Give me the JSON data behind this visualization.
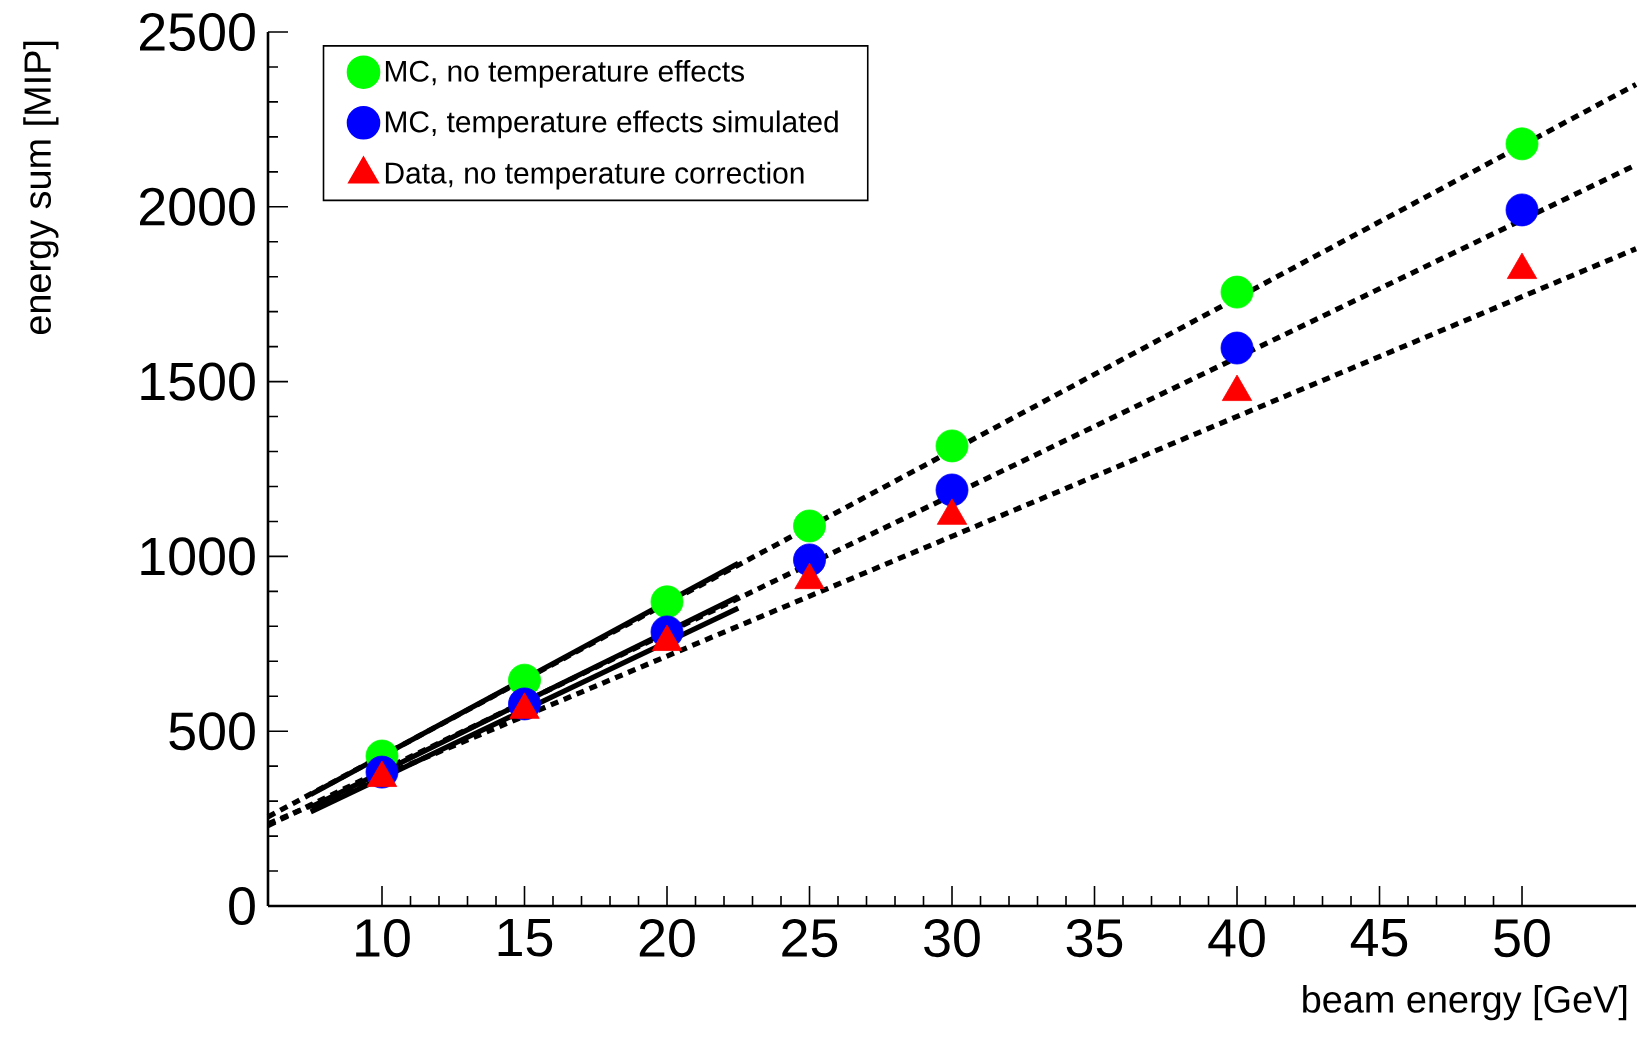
{
  "chart_data": {
    "type": "scatter",
    "xlabel": "beam energy [GeV]",
    "ylabel": "energy sum [MIP]",
    "xlim": [
      6,
      54
    ],
    "ylim": [
      0,
      2500
    ],
    "xticks": [
      10,
      15,
      20,
      25,
      30,
      35,
      40,
      45,
      50
    ],
    "yticks": [
      0,
      500,
      1000,
      1500,
      2000,
      2500
    ],
    "grid": false,
    "legend": "top left",
    "x": [
      10,
      15,
      20,
      25,
      30,
      40,
      50
    ],
    "series": [
      {
        "name": "MC, no temperature effects",
        "color": "#00ff00",
        "marker": "circle",
        "values": [
          429,
          646,
          870,
          1087,
          1316,
          1756,
          2180
        ]
      },
      {
        "name": "MC, temperature effects simulated",
        "color": "#0000ff",
        "marker": "circle",
        "values": [
          383,
          578,
          784,
          990,
          1190,
          1596,
          1991
        ]
      },
      {
        "name": "Data, no temperature correction",
        "color": "#ff0000",
        "marker": "triangle",
        "values": [
          366,
          561,
          755,
          932,
          1116,
          1470,
          1819
        ]
      },
      {
        "type": "line",
        "color": "#000000",
        "line_style": "solid",
        "x": [
          7.5,
          22.5
        ],
        "values": [
          319,
          980
        ]
      },
      {
        "type": "line",
        "color": "#000000",
        "line_style": "solid",
        "x": [
          7.5,
          22.5
        ],
        "values": [
          283,
          885
        ]
      },
      {
        "type": "line",
        "color": "#000000",
        "line_style": "solid",
        "x": [
          7.5,
          22.5
        ],
        "values": [
          269,
          852
        ]
      },
      {
        "type": "line",
        "color": "#000000",
        "line_style": "dotted",
        "x": [
          6,
          54
        ],
        "values": [
          255,
          2350
        ]
      },
      {
        "type": "line",
        "color": "#000000",
        "line_style": "dotted",
        "x": [
          6,
          54
        ],
        "values": [
          230,
          2120
        ]
      },
      {
        "type": "line",
        "color": "#000000",
        "line_style": "dotted",
        "x": [
          6,
          54
        ],
        "values": [
          235,
          1880
        ]
      }
    ]
  }
}
